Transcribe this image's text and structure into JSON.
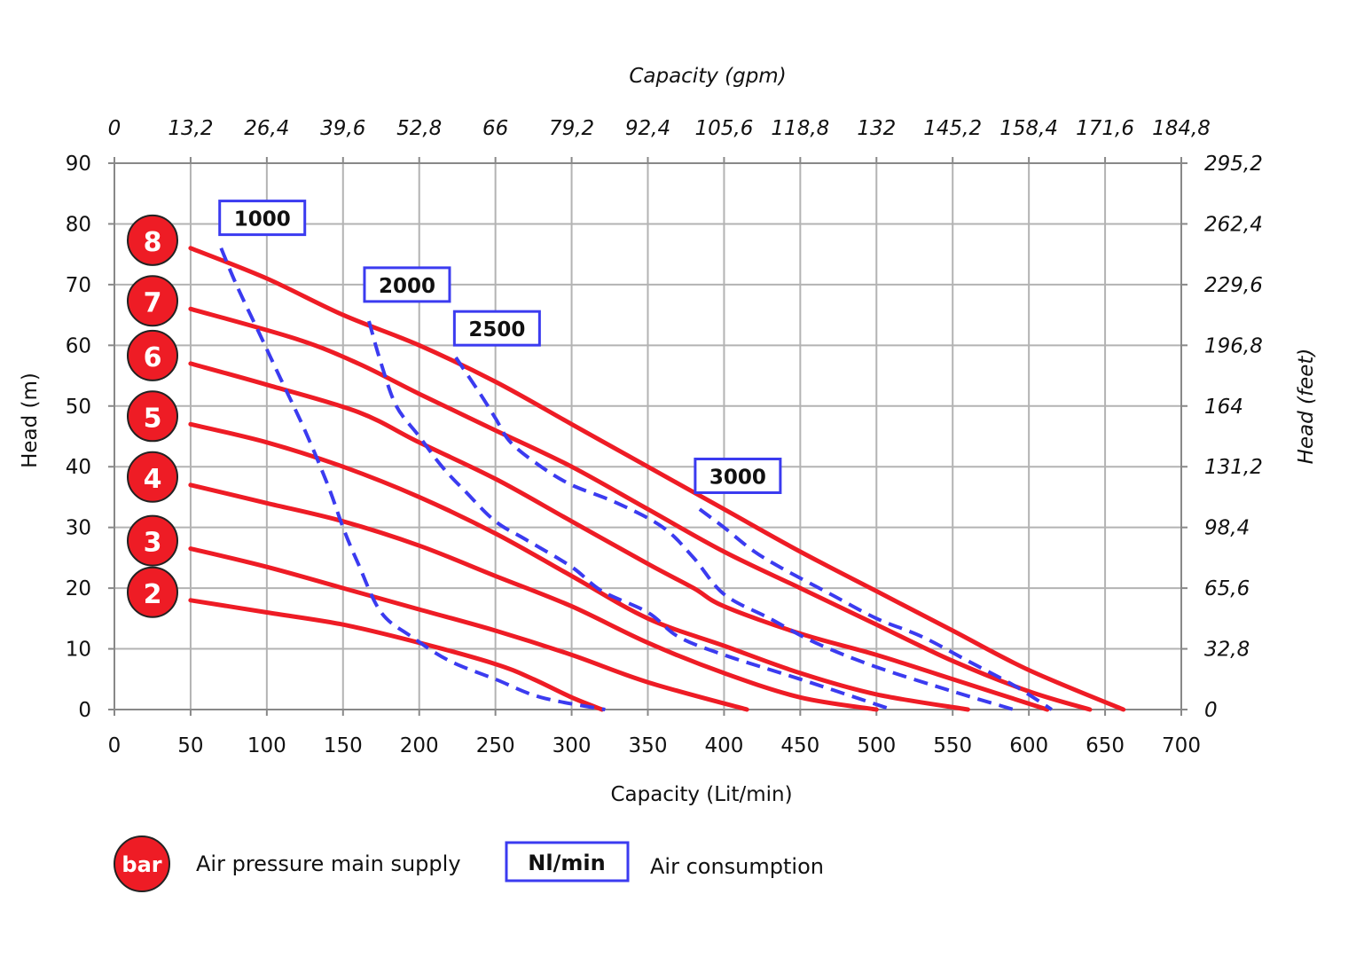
{
  "chart_data": {
    "type": "line",
    "xlabel": "Capacity (Lit/min)",
    "x2label": "Capacity (gpm)",
    "ylabel": "Head (m)",
    "y2label": "Head (feet)",
    "xlim": [
      0,
      700
    ],
    "ylim": [
      0,
      90
    ],
    "grid": true,
    "x_ticks": [
      "0",
      "50",
      "100",
      "150",
      "200",
      "250",
      "300",
      "350",
      "400",
      "450",
      "500",
      "550",
      "600",
      "650",
      "700"
    ],
    "x2_ticks": [
      "0",
      "13,2",
      "26,4",
      "39,6",
      "52,8",
      "66",
      "79,2",
      "92,4",
      "105,6",
      "118,8",
      "132",
      "145,2",
      "158,4",
      "171,6",
      "184,8"
    ],
    "y_ticks": [
      "0",
      "10",
      "20",
      "30",
      "40",
      "50",
      "60",
      "70",
      "80",
      "90"
    ],
    "y2_ticks": [
      "0",
      "32,8",
      "65,6",
      "98,4",
      "131,2",
      "164",
      "196,8",
      "229,6",
      "262,4",
      "295,2"
    ],
    "pressure_series": [
      {
        "label": "8",
        "color": "#ee1c25",
        "points": [
          [
            50,
            76
          ],
          [
            100,
            71
          ],
          [
            150,
            65
          ],
          [
            200,
            60
          ],
          [
            250,
            54
          ],
          [
            300,
            47
          ],
          [
            350,
            40
          ],
          [
            400,
            33
          ],
          [
            450,
            26
          ],
          [
            500,
            19.5
          ],
          [
            550,
            13
          ],
          [
            600,
            6.5
          ],
          [
            662,
            0
          ]
        ]
      },
      {
        "label": "7",
        "color": "#ee1c25",
        "points": [
          [
            50,
            66
          ],
          [
            120,
            61
          ],
          [
            160,
            57
          ],
          [
            200,
            52
          ],
          [
            250,
            46
          ],
          [
            300,
            40
          ],
          [
            350,
            33
          ],
          [
            400,
            26
          ],
          [
            450,
            20
          ],
          [
            500,
            14
          ],
          [
            550,
            8
          ],
          [
            600,
            3
          ],
          [
            640,
            0
          ]
        ]
      },
      {
        "label": "6",
        "color": "#ee1c25",
        "points": [
          [
            50,
            57
          ],
          [
            100,
            53.5
          ],
          [
            160,
            49
          ],
          [
            200,
            44
          ],
          [
            250,
            38
          ],
          [
            300,
            31
          ],
          [
            350,
            24
          ],
          [
            380,
            20
          ],
          [
            400,
            17
          ],
          [
            450,
            12.5
          ],
          [
            500,
            9
          ],
          [
            550,
            5
          ],
          [
            612,
            0
          ]
        ]
      },
      {
        "label": "5",
        "color": "#ee1c25",
        "points": [
          [
            50,
            47
          ],
          [
            100,
            44
          ],
          [
            150,
            40
          ],
          [
            200,
            35
          ],
          [
            250,
            29
          ],
          [
            300,
            22
          ],
          [
            350,
            15
          ],
          [
            400,
            10.5
          ],
          [
            450,
            6
          ],
          [
            500,
            2.5
          ],
          [
            560,
            0
          ]
        ]
      },
      {
        "label": "4",
        "color": "#ee1c25",
        "points": [
          [
            50,
            37
          ],
          [
            100,
            34
          ],
          [
            150,
            31
          ],
          [
            200,
            27
          ],
          [
            250,
            22
          ],
          [
            300,
            17
          ],
          [
            350,
            11
          ],
          [
            400,
            6
          ],
          [
            450,
            2
          ],
          [
            500,
            0
          ]
        ]
      },
      {
        "label": "3",
        "color": "#ee1c25",
        "points": [
          [
            50,
            26.5
          ],
          [
            100,
            23.5
          ],
          [
            150,
            20
          ],
          [
            200,
            16.5
          ],
          [
            250,
            13
          ],
          [
            300,
            9
          ],
          [
            350,
            4.5
          ],
          [
            415,
            0
          ]
        ]
      },
      {
        "label": "2",
        "color": "#ee1c25",
        "points": [
          [
            50,
            18
          ],
          [
            100,
            16
          ],
          [
            150,
            14
          ],
          [
            200,
            11
          ],
          [
            250,
            7.5
          ],
          [
            275,
            5
          ],
          [
            300,
            2
          ],
          [
            320,
            0
          ]
        ]
      }
    ],
    "air_series": [
      {
        "label": "1000",
        "color": "#3b3bf0",
        "box_at": [
          97,
          81
        ],
        "points": [
          [
            70,
            76
          ],
          [
            80,
            70
          ],
          [
            95,
            62
          ],
          [
            110,
            54
          ],
          [
            125,
            46
          ],
          [
            140,
            37
          ],
          [
            150,
            30
          ],
          [
            160,
            24
          ],
          [
            175,
            16
          ],
          [
            195,
            12
          ],
          [
            220,
            8
          ],
          [
            250,
            5
          ],
          [
            280,
            2
          ],
          [
            322,
            0
          ]
        ]
      },
      {
        "label": "2000",
        "color": "#3b3bf0",
        "box_at": [
          192,
          70
        ],
        "points": [
          [
            167,
            64
          ],
          [
            175,
            57
          ],
          [
            185,
            50
          ],
          [
            200,
            45
          ],
          [
            215,
            40
          ],
          [
            230,
            36
          ],
          [
            250,
            31
          ],
          [
            270,
            28
          ],
          [
            300,
            23.5
          ],
          [
            320,
            19.5
          ],
          [
            350,
            16
          ],
          [
            370,
            12
          ],
          [
            400,
            9
          ],
          [
            450,
            5
          ],
          [
            510,
            0
          ]
        ]
      },
      {
        "label": "2500",
        "color": "#3b3bf0",
        "box_at": [
          251,
          62.8
        ],
        "points": [
          [
            224,
            58
          ],
          [
            240,
            52
          ],
          [
            250,
            48
          ],
          [
            260,
            44
          ],
          [
            280,
            40
          ],
          [
            300,
            37
          ],
          [
            330,
            34
          ],
          [
            360,
            30
          ],
          [
            380,
            25
          ],
          [
            400,
            19
          ],
          [
            430,
            15
          ],
          [
            460,
            11
          ],
          [
            500,
            7
          ],
          [
            550,
            3
          ],
          [
            590,
            0
          ]
        ]
      },
      {
        "label": "3000",
        "color": "#3b3bf0",
        "box_at": [
          409,
          38.5
        ],
        "points": [
          [
            384,
            33
          ],
          [
            400,
            30
          ],
          [
            420,
            26
          ],
          [
            440,
            23
          ],
          [
            470,
            19
          ],
          [
            500,
            15
          ],
          [
            530,
            12
          ],
          [
            560,
            8
          ],
          [
            590,
            4
          ],
          [
            615,
            0
          ]
        ]
      }
    ],
    "legend": [
      {
        "badge": "bar",
        "text": "Air pressure main supply"
      },
      {
        "badge": "Nl/min",
        "text": "Air consumption"
      }
    ]
  }
}
